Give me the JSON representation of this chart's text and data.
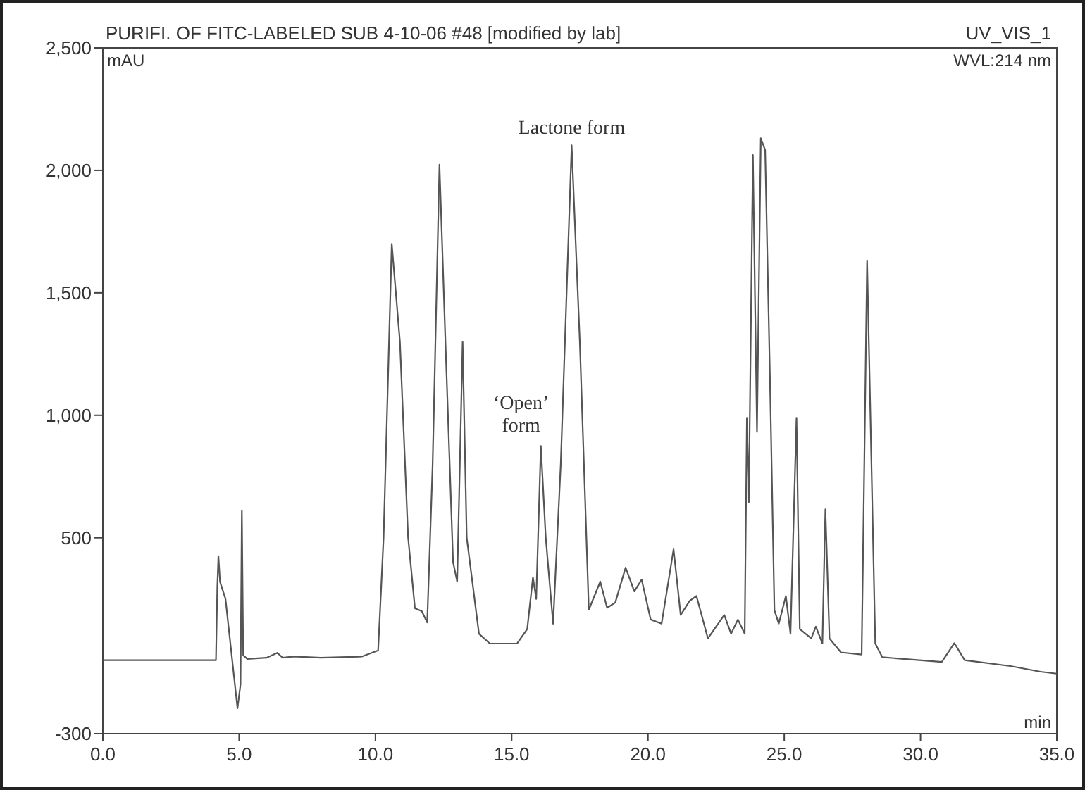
{
  "chart_data": {
    "type": "line",
    "title": "PURIFI. OF FITC-LABELED SUB 4-10-06 #48 [modified by lab]",
    "subtitle": "UV_VIS_1",
    "ylabel": "mAU",
    "xlabel": "min",
    "annotations": [
      "WVL:214 nm",
      {
        "text": "Lactone form",
        "x": 17.2,
        "y": 2102
      },
      {
        "text": "‘Open’ form",
        "x": 16.07,
        "y": 875
      }
    ],
    "x": [
      0,
      4.15,
      4.2,
      4.24,
      4.3,
      4.5,
      4.94,
      5.05,
      5.1,
      5.15,
      5.3,
      6.0,
      6.4,
      6.6,
      7.0,
      8.0,
      9.5,
      10.1,
      10.3,
      10.6,
      10.9,
      11.2,
      11.45,
      11.7,
      11.9,
      12.1,
      12.35,
      12.6,
      12.85,
      13.0,
      13.2,
      13.35,
      13.8,
      14.2,
      15.2,
      15.57,
      15.78,
      15.9,
      16.07,
      16.25,
      16.52,
      16.8,
      17.2,
      17.5,
      17.83,
      18.25,
      18.5,
      18.8,
      19.18,
      19.5,
      19.77,
      20.1,
      20.5,
      20.94,
      21.2,
      21.53,
      21.78,
      22.2,
      22.8,
      23.05,
      23.3,
      23.55,
      23.63,
      23.7,
      23.85,
      24.0,
      24.14,
      24.3,
      24.47,
      24.64,
      24.8,
      25.06,
      25.23,
      25.45,
      25.57,
      25.99,
      26.16,
      26.4,
      26.51,
      26.66,
      27.08,
      27.84,
      28.04,
      28.34,
      28.6,
      30.78,
      31.24,
      31.62,
      33.3,
      34.4,
      35
    ],
    "series": [
      {
        "color": "#555555",
        "values": [
          0,
          0,
          300,
          425,
          320,
          250,
          -196,
          -100,
          610,
          20,
          5,
          10,
          30,
          10,
          15,
          10,
          15,
          40,
          500,
          1700,
          1300,
          500,
          212,
          200,
          154,
          800,
          2023,
          1200,
          400,
          321,
          1299,
          500,
          108,
          68,
          68,
          127,
          338,
          250,
          875,
          500,
          149,
          800,
          2102,
          1300,
          206,
          321,
          214,
          235,
          378,
          281,
          329,
          166,
          149,
          453,
          185,
          242,
          262,
          89,
          185,
          108,
          166,
          108,
          990,
          645,
          2063,
          932,
          2131,
          2083,
          1184,
          204,
          149,
          262,
          108,
          990,
          127,
          89,
          137,
          68,
          616,
          89,
          32,
          23,
          1632,
          68,
          12,
          -7,
          70,
          0,
          -24,
          -47,
          -55
        ]
      }
    ],
    "xlim": [
      0,
      35
    ],
    "ylim": [
      -300,
      2500
    ],
    "xticks": [
      {
        "value": 0,
        "label": "0.0"
      },
      {
        "value": 5,
        "label": "5.0"
      },
      {
        "value": 10,
        "label": "10.0"
      },
      {
        "value": 15,
        "label": "15.0"
      },
      {
        "value": 20,
        "label": "20.0"
      },
      {
        "value": 25,
        "label": "25.0"
      },
      {
        "value": 30,
        "label": "30.0"
      },
      {
        "value": 35,
        "label": "35.0"
      }
    ],
    "yticks": [
      {
        "value": -300,
        "label": "-300"
      },
      {
        "value": 500,
        "label": "500"
      },
      {
        "value": 1000,
        "label": "1,000"
      },
      {
        "value": 1500,
        "label": "1,500"
      },
      {
        "value": 2000,
        "label": "2,000"
      },
      {
        "value": 2500,
        "label": "2,500"
      }
    ],
    "grid": false,
    "marker": "none",
    "line_style": "solid"
  }
}
